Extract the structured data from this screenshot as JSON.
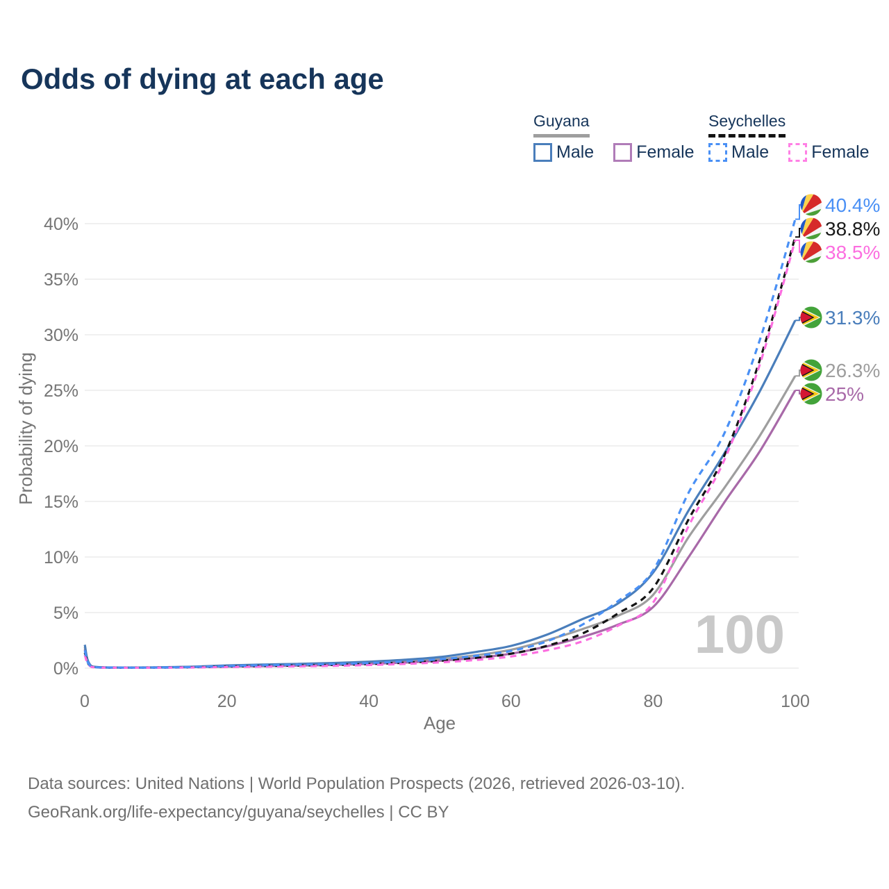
{
  "title": "Odds of dying at each age",
  "watermark": "100",
  "legend": {
    "groups": [
      {
        "country": "Guyana",
        "line_style": "solid",
        "line_color": "#9e9e9e",
        "items": [
          {
            "label": "Male",
            "color": "#4a7ebb"
          },
          {
            "label": "Female",
            "color": "#b07cb8"
          }
        ]
      },
      {
        "country": "Seychelles",
        "line_style": "dashed",
        "line_color": "#141414",
        "items": [
          {
            "label": "Male",
            "color": "#4a90f5"
          },
          {
            "label": "Female",
            "color": "#ff80e5"
          }
        ]
      }
    ]
  },
  "footer": {
    "line1": "Data sources: United Nations | World Population Prospects (2026, retrieved 2026-03-10).",
    "line2": "GeoRank.org/life-expectancy/guyana/seychelles | CC BY"
  },
  "chart_data": {
    "type": "line",
    "title": "Odds of dying at each age",
    "xlabel": "Age",
    "ylabel": "Probability of dying",
    "x_ticks": [
      0,
      20,
      40,
      60,
      80,
      100
    ],
    "y_ticks_percent": [
      0,
      5,
      10,
      15,
      20,
      25,
      30,
      35,
      40
    ],
    "xlim": [
      0,
      100
    ],
    "ylim_percent": [
      0,
      42
    ],
    "grid": true,
    "legend_position": "top-right",
    "age_counter_watermark": "100",
    "ages": [
      0,
      1,
      5,
      10,
      15,
      20,
      25,
      30,
      35,
      40,
      45,
      50,
      55,
      60,
      65,
      70,
      75,
      80,
      85,
      90,
      95,
      100
    ],
    "series": [
      {
        "name": "Guyana Both sexes",
        "country": "Guyana",
        "flag": "guyana",
        "color": "#9e9e9e",
        "dash": false,
        "end_label": "26.3%",
        "label_color": "#9e9e9e",
        "values": [
          1.9,
          0.14,
          0.05,
          0.06,
          0.11,
          0.19,
          0.26,
          0.31,
          0.37,
          0.47,
          0.6,
          0.82,
          1.15,
          1.65,
          2.5,
          3.5,
          4.7,
          6.6,
          11.8,
          16.2,
          20.9,
          26.3
        ]
      },
      {
        "name": "Guyana Female",
        "country": "Guyana",
        "flag": "guyana",
        "color": "#a869a8",
        "dash": false,
        "end_label": "25%",
        "label_color": "#a869a8",
        "values": [
          1.7,
          0.13,
          0.05,
          0.05,
          0.09,
          0.14,
          0.18,
          0.23,
          0.29,
          0.38,
          0.5,
          0.67,
          0.92,
          1.3,
          1.95,
          2.8,
          3.9,
          5.5,
          10.0,
          14.9,
          19.5,
          25.0
        ]
      },
      {
        "name": "Guyana Male",
        "country": "Guyana",
        "flag": "guyana",
        "color": "#4a7ebb",
        "dash": false,
        "end_label": "31.3%",
        "label_color": "#4a7ebb",
        "values": [
          2.1,
          0.16,
          0.06,
          0.07,
          0.13,
          0.24,
          0.32,
          0.38,
          0.46,
          0.58,
          0.75,
          1.0,
          1.45,
          2.0,
          3.0,
          4.4,
          5.8,
          8.6,
          14.2,
          19.3,
          24.9,
          31.3
        ]
      },
      {
        "name": "Seychelles Both sexes",
        "country": "Seychelles",
        "flag": "seychelles",
        "color": "#141414",
        "dash": true,
        "end_label": "38.8%",
        "label_color": "#1a1a1a",
        "values": [
          1.4,
          0.11,
          0.04,
          0.05,
          0.08,
          0.14,
          0.19,
          0.24,
          0.29,
          0.37,
          0.49,
          0.66,
          0.92,
          1.3,
          2.0,
          3.1,
          4.9,
          7.2,
          13.4,
          19.1,
          27.7,
          38.8
        ]
      },
      {
        "name": "Seychelles Female",
        "country": "Seychelles",
        "flag": "seychelles",
        "color": "#fc6ee0",
        "dash": true,
        "end_label": "38.5%",
        "label_color": "#fc6ee0",
        "values": [
          1.2,
          0.1,
          0.04,
          0.04,
          0.06,
          0.1,
          0.13,
          0.17,
          0.21,
          0.28,
          0.38,
          0.52,
          0.73,
          1.05,
          1.6,
          2.4,
          3.8,
          5.9,
          12.8,
          18.7,
          27.3,
          38.5
        ]
      },
      {
        "name": "Seychelles Male",
        "country": "Seychelles",
        "flag": "seychelles",
        "color": "#4a90f5",
        "dash": true,
        "end_label": "40.4%",
        "label_color": "#4a90f5",
        "values": [
          1.6,
          0.12,
          0.05,
          0.05,
          0.1,
          0.18,
          0.26,
          0.31,
          0.37,
          0.46,
          0.6,
          0.8,
          1.1,
          1.55,
          2.4,
          3.9,
          6.0,
          8.8,
          15.8,
          21.1,
          29.5,
          40.4
        ]
      }
    ]
  }
}
